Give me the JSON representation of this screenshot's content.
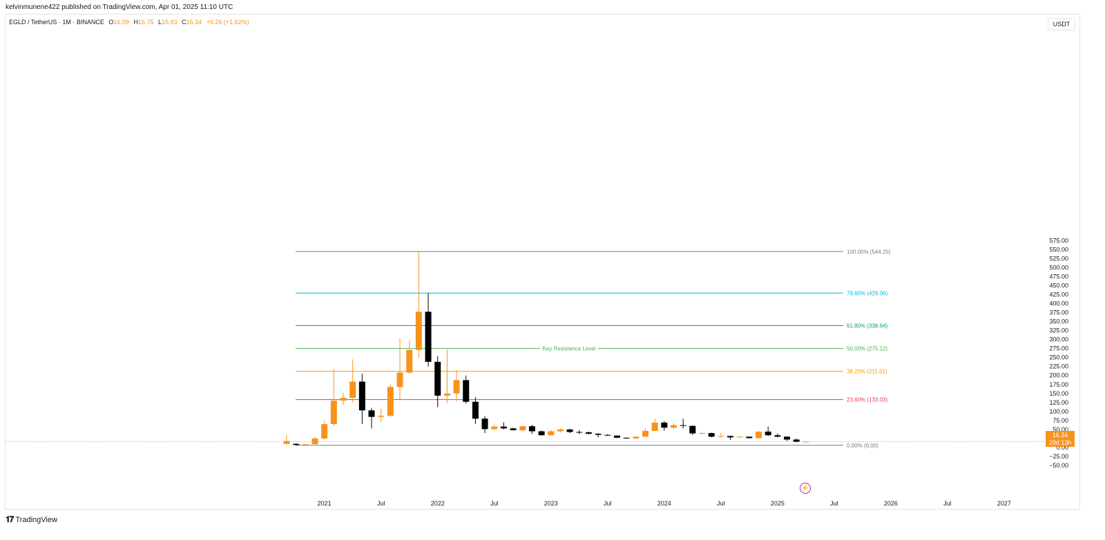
{
  "header": {
    "published_text": "kelvinmunene422 published on TradingView.com, Apr 01, 2025 11:10 UTC"
  },
  "legend": {
    "symbol": "EGLD / TetherUS · 1M · BINANCE",
    "open_label": "O",
    "open": "16.09",
    "high_label": "H",
    "high": "16.75",
    "low_label": "L",
    "low": "15.93",
    "close_label": "C",
    "close": "16.34",
    "change": "+0.26 (+1.62%)"
  },
  "currency_button": "USDT",
  "price_tag": {
    "price": "16.34",
    "countdown": "29d 13h"
  },
  "footer": {
    "brand": "TradingView",
    "logo_icon": "tradingview-logo-icon"
  },
  "colors": {
    "up": "#f7931a",
    "down": "#000000",
    "price_line": "#f7931a"
  },
  "chart_data": {
    "type": "candlestick",
    "symbol": "EGLD/USDT",
    "interval": "1M",
    "y_axis_ticks": [
      "575.00",
      "550.00",
      "525.00",
      "500.00",
      "475.00",
      "450.00",
      "425.00",
      "400.00",
      "375.00",
      "350.00",
      "325.00",
      "300.00",
      "275.00",
      "250.00",
      "225.00",
      "200.00",
      "175.00",
      "150.00",
      "125.00",
      "100.00",
      "75.00",
      "50.00",
      "25.00",
      "0.00",
      "−25.00",
      "−50.00"
    ],
    "ylim": [
      -55,
      580
    ],
    "x_axis_labels": [
      {
        "label": "2021",
        "idx": 4
      },
      {
        "label": "Jul",
        "idx": 10
      },
      {
        "label": "2022",
        "idx": 16
      },
      {
        "label": "Jul",
        "idx": 22
      },
      {
        "label": "2023",
        "idx": 28
      },
      {
        "label": "Jul",
        "idx": 34
      },
      {
        "label": "2024",
        "idx": 40
      },
      {
        "label": "Jul",
        "idx": 46
      },
      {
        "label": "2025",
        "idx": 52
      },
      {
        "label": "Jul",
        "idx": 58
      },
      {
        "label": "2026",
        "idx": 64
      },
      {
        "label": "Jul",
        "idx": 70
      },
      {
        "label": "2027",
        "idx": 76
      }
    ],
    "candles": [
      {
        "date": "2020-09",
        "o": 10,
        "h": 35,
        "l": 8,
        "c": 18
      },
      {
        "date": "2020-10",
        "o": 10,
        "h": 12,
        "l": 5,
        "c": 7
      },
      {
        "date": "2020-11",
        "o": 7,
        "h": 10,
        "l": 6,
        "c": 9
      },
      {
        "date": "2020-12",
        "o": 9,
        "h": 30,
        "l": 8,
        "c": 25
      },
      {
        "date": "2021-01",
        "o": 25,
        "h": 75,
        "l": 22,
        "c": 65
      },
      {
        "date": "2021-02",
        "o": 65,
        "h": 218,
        "l": 60,
        "c": 130
      },
      {
        "date": "2021-03",
        "o": 130,
        "h": 152,
        "l": 118,
        "c": 138
      },
      {
        "date": "2021-04",
        "o": 138,
        "h": 245,
        "l": 125,
        "c": 183
      },
      {
        "date": "2021-05",
        "o": 183,
        "h": 205,
        "l": 65,
        "c": 103
      },
      {
        "date": "2021-06",
        "o": 103,
        "h": 110,
        "l": 53,
        "c": 85
      },
      {
        "date": "2021-07",
        "o": 85,
        "h": 108,
        "l": 70,
        "c": 88
      },
      {
        "date": "2021-08",
        "o": 88,
        "h": 175,
        "l": 85,
        "c": 168
      },
      {
        "date": "2021-09",
        "o": 168,
        "h": 303,
        "l": 133,
        "c": 208
      },
      {
        "date": "2021-10",
        "o": 208,
        "h": 297,
        "l": 205,
        "c": 271
      },
      {
        "date": "2021-11",
        "o": 271,
        "h": 544,
        "l": 250,
        "c": 377
      },
      {
        "date": "2021-12",
        "o": 377,
        "h": 429,
        "l": 225,
        "c": 238
      },
      {
        "date": "2022-01",
        "o": 238,
        "h": 254,
        "l": 112,
        "c": 144
      },
      {
        "date": "2022-02",
        "o": 144,
        "h": 272,
        "l": 123,
        "c": 150
      },
      {
        "date": "2022-03",
        "o": 150,
        "h": 215,
        "l": 128,
        "c": 187
      },
      {
        "date": "2022-04",
        "o": 187,
        "h": 200,
        "l": 122,
        "c": 127
      },
      {
        "date": "2022-05",
        "o": 127,
        "h": 140,
        "l": 65,
        "c": 80
      },
      {
        "date": "2022-06",
        "o": 80,
        "h": 87,
        "l": 40,
        "c": 51
      },
      {
        "date": "2022-07",
        "o": 51,
        "h": 64,
        "l": 48,
        "c": 58
      },
      {
        "date": "2022-08",
        "o": 58,
        "h": 70,
        "l": 50,
        "c": 53
      },
      {
        "date": "2022-09",
        "o": 53,
        "h": 55,
        "l": 47,
        "c": 48
      },
      {
        "date": "2022-10",
        "o": 48,
        "h": 60,
        "l": 45,
        "c": 59
      },
      {
        "date": "2022-11",
        "o": 59,
        "h": 63,
        "l": 38,
        "c": 45
      },
      {
        "date": "2022-12",
        "o": 45,
        "h": 47,
        "l": 33,
        "c": 34
      },
      {
        "date": "2023-01",
        "o": 34,
        "h": 48,
        "l": 33,
        "c": 45
      },
      {
        "date": "2023-02",
        "o": 45,
        "h": 53,
        "l": 42,
        "c": 50
      },
      {
        "date": "2023-03",
        "o": 50,
        "h": 52,
        "l": 40,
        "c": 43
      },
      {
        "date": "2023-04",
        "o": 43,
        "h": 48,
        "l": 37,
        "c": 42
      },
      {
        "date": "2023-05",
        "o": 42,
        "h": 44,
        "l": 36,
        "c": 38
      },
      {
        "date": "2023-06",
        "o": 38,
        "h": 40,
        "l": 28,
        "c": 35
      },
      {
        "date": "2023-07",
        "o": 35,
        "h": 37,
        "l": 32,
        "c": 33
      },
      {
        "date": "2023-08",
        "o": 33,
        "h": 34,
        "l": 26,
        "c": 27
      },
      {
        "date": "2023-09",
        "o": 27,
        "h": 28,
        "l": 24,
        "c": 25
      },
      {
        "date": "2023-10",
        "o": 25,
        "h": 31,
        "l": 24,
        "c": 30
      },
      {
        "date": "2023-11",
        "o": 30,
        "h": 53,
        "l": 29,
        "c": 46
      },
      {
        "date": "2023-12",
        "o": 46,
        "h": 80,
        "l": 45,
        "c": 69
      },
      {
        "date": "2024-01",
        "o": 69,
        "h": 73,
        "l": 47,
        "c": 55
      },
      {
        "date": "2024-02",
        "o": 55,
        "h": 67,
        "l": 52,
        "c": 62
      },
      {
        "date": "2024-03",
        "o": 62,
        "h": 80,
        "l": 53,
        "c": 60
      },
      {
        "date": "2024-04",
        "o": 60,
        "h": 61,
        "l": 35,
        "c": 39
      },
      {
        "date": "2024-05",
        "o": 39,
        "h": 42,
        "l": 37,
        "c": 40
      },
      {
        "date": "2024-06",
        "o": 40,
        "h": 41,
        "l": 28,
        "c": 30
      },
      {
        "date": "2024-07",
        "o": 30,
        "h": 40,
        "l": 28,
        "c": 32
      },
      {
        "date": "2024-08",
        "o": 32,
        "h": 33,
        "l": 21,
        "c": 28
      },
      {
        "date": "2024-09",
        "o": 28,
        "h": 31,
        "l": 27,
        "c": 30
      },
      {
        "date": "2024-10",
        "o": 30,
        "h": 30,
        "l": 25,
        "c": 26
      },
      {
        "date": "2024-11",
        "o": 26,
        "h": 45,
        "l": 25,
        "c": 44
      },
      {
        "date": "2024-12",
        "o": 44,
        "h": 58,
        "l": 32,
        "c": 34
      },
      {
        "date": "2025-01",
        "o": 34,
        "h": 39,
        "l": 28,
        "c": 30
      },
      {
        "date": "2025-02",
        "o": 30,
        "h": 31,
        "l": 18,
        "c": 22
      },
      {
        "date": "2025-03",
        "o": 22,
        "h": 25,
        "l": 15,
        "c": 16
      },
      {
        "date": "2025-04",
        "o": 16.09,
        "h": 16.75,
        "l": 15.93,
        "c": 16.34
      }
    ],
    "fib_levels": [
      {
        "label": "100.00% (544.25)",
        "value": 544.25,
        "color": "#787b86"
      },
      {
        "label": "78.60% (429.06)",
        "value": 429.06,
        "color": "#00bcd4"
      },
      {
        "label": "61.80% (338.64)",
        "value": 338.64,
        "color": "#089981"
      },
      {
        "label": "50.00% (275.12)",
        "value": 275.12,
        "color": "#4caf50"
      },
      {
        "label": "38.20% (211.61)",
        "value": 211.61,
        "color": "#ff9800"
      },
      {
        "label": "23.60% (133.03)",
        "value": 133.03,
        "color": "#f23645"
      },
      {
        "label": "0.00% (6.00)",
        "value": 6.0,
        "color": "#787b86"
      }
    ],
    "annotation": {
      "text": "Key Resistance Level",
      "value": 275.12,
      "color": "#4caf50"
    },
    "last_price": 16.34
  }
}
